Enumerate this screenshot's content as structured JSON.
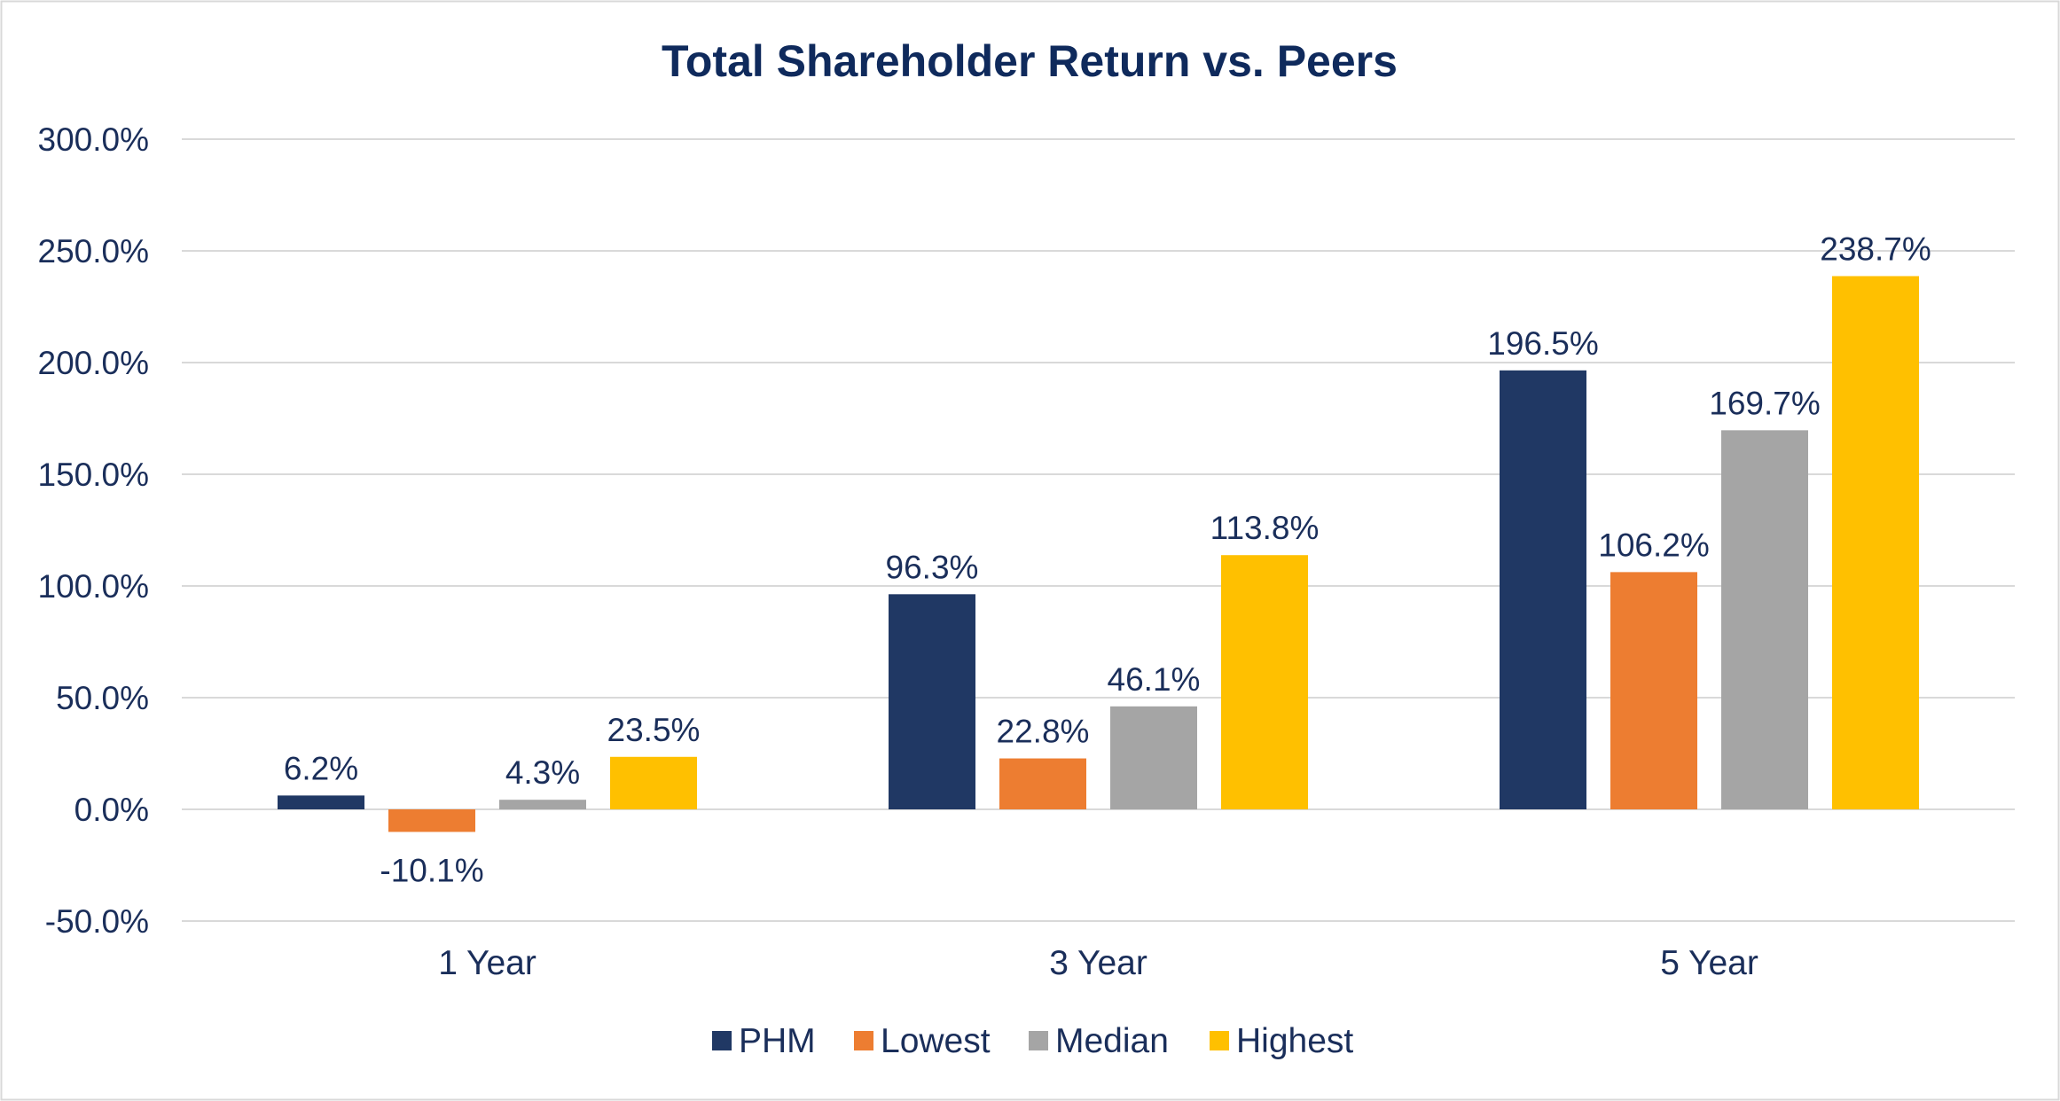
{
  "chart_data": {
    "type": "bar",
    "title": "Total Shareholder Return vs. Peers",
    "xlabel": "",
    "ylabel": "",
    "categories": [
      "1 Year",
      "3 Year",
      "5 Year"
    ],
    "ylim": [
      -50,
      300
    ],
    "yticks": [
      300,
      250,
      200,
      150,
      100,
      50,
      0,
      -50
    ],
    "ytick_labels": [
      "300.0%",
      "250.0%",
      "200.0%",
      "150.0%",
      "100.0%",
      "50.0%",
      "0.0%",
      "-50.0%"
    ],
    "grid": true,
    "legend_position": "bottom-center",
    "series": [
      {
        "name": "PHM",
        "color": "#203864",
        "values": [
          6.2,
          96.3,
          196.5
        ],
        "labels": [
          "6.2%",
          "96.3%",
          "196.5%"
        ]
      },
      {
        "name": "Lowest",
        "color": "#ed7d31",
        "values": [
          -10.1,
          22.8,
          106.2
        ],
        "labels": [
          "-10.1%",
          "22.8%",
          "106.2%"
        ]
      },
      {
        "name": "Median",
        "color": "#a5a5a5",
        "values": [
          4.3,
          46.1,
          169.7
        ],
        "labels": [
          "4.3%",
          "46.1%",
          "169.7%"
        ]
      },
      {
        "name": "Highest",
        "color": "#ffc000",
        "values": [
          23.5,
          113.8,
          238.7
        ],
        "labels": [
          "23.5%",
          "113.8%",
          "238.7%"
        ]
      }
    ],
    "colors": {
      "title": "#0f2a5c",
      "text": "#1a2e5a",
      "gridline": "#d9d9d9",
      "border": "#d9d9d9"
    }
  }
}
